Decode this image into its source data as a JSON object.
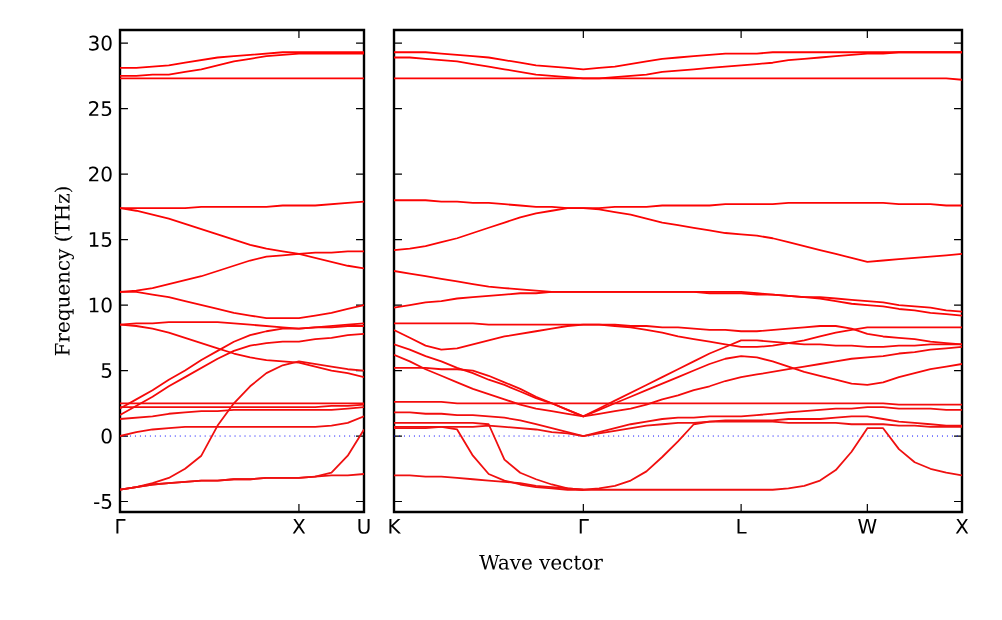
{
  "chart_data": [
    {
      "type": "line",
      "ylabel": "Frequency (THz)",
      "ylim": [
        -5.8,
        31
      ],
      "categories": [
        "Γ",
        null,
        null,
        null,
        null,
        null,
        null,
        null,
        null,
        null,
        null,
        "X",
        null,
        null,
        null,
        "U"
      ],
      "yticks": [
        -5,
        0,
        5,
        10,
        15,
        20,
        25,
        30
      ],
      "ref_lines": [
        {
          "axis": "y",
          "value": 0,
          "color": "#0000ff",
          "line_style": "dotted"
        }
      ],
      "series": [
        {
          "color": "#ff0000",
          "values": [
            28.1,
            28.1,
            28.2,
            28.3,
            28.5,
            28.7,
            28.9,
            29.0,
            29.1,
            29.2,
            29.3,
            29.3,
            29.3,
            29.3,
            29.3,
            29.3
          ]
        },
        {
          "color": "#fe0101",
          "values": [
            27.5,
            27.5,
            27.6,
            27.6,
            27.8,
            28.0,
            28.3,
            28.6,
            28.8,
            29.0,
            29.1,
            29.2,
            29.2,
            29.2,
            29.2,
            29.2
          ]
        },
        {
          "color": "#fd0202",
          "values": [
            27.3,
            27.3,
            27.3,
            27.3,
            27.3,
            27.3,
            27.3,
            27.3,
            27.3,
            27.3,
            27.3,
            27.3,
            27.3,
            27.3,
            27.3,
            27.3
          ]
        },
        {
          "color": "#fc0303",
          "values": [
            17.4,
            17.4,
            17.4,
            17.4,
            17.4,
            17.5,
            17.5,
            17.5,
            17.5,
            17.5,
            17.6,
            17.6,
            17.6,
            17.7,
            17.8,
            17.9
          ]
        },
        {
          "color": "#fb0404",
          "values": [
            17.4,
            17.2,
            16.9,
            16.6,
            16.2,
            15.8,
            15.4,
            15.0,
            14.6,
            14.3,
            14.1,
            13.9,
            13.6,
            13.3,
            13.0,
            12.8
          ]
        },
        {
          "color": "#fa0505",
          "values": [
            11.0,
            11.1,
            11.3,
            11.6,
            11.9,
            12.2,
            12.6,
            13.0,
            13.4,
            13.7,
            13.8,
            13.9,
            14.0,
            14.0,
            14.1,
            14.1
          ]
        },
        {
          "color": "#f90606",
          "values": [
            11.0,
            11.0,
            10.8,
            10.6,
            10.3,
            10.0,
            9.7,
            9.4,
            9.2,
            9.0,
            9.0,
            9.0,
            9.2,
            9.4,
            9.7,
            10.0
          ]
        },
        {
          "color": "#f80707",
          "values": [
            8.5,
            8.6,
            8.6,
            8.7,
            8.7,
            8.7,
            8.7,
            8.6,
            8.5,
            8.4,
            8.3,
            8.2,
            8.3,
            8.4,
            8.5,
            8.6
          ]
        },
        {
          "color": "#f70808",
          "values": [
            8.5,
            8.4,
            8.2,
            7.9,
            7.5,
            7.1,
            6.7,
            6.3,
            6.0,
            5.8,
            5.7,
            5.6,
            5.3,
            5.0,
            4.8,
            4.5
          ]
        },
        {
          "color": "#f60909",
          "values": [
            1.6,
            2.3,
            3.0,
            3.8,
            4.5,
            5.2,
            5.9,
            6.5,
            6.9,
            7.1,
            7.2,
            7.2,
            7.4,
            7.5,
            7.7,
            7.8
          ]
        },
        {
          "color": "#f50a0a",
          "values": [
            2.1,
            2.8,
            3.5,
            4.3,
            5.0,
            5.8,
            6.5,
            7.2,
            7.7,
            8.0,
            8.2,
            8.2,
            8.3,
            8.3,
            8.4,
            8.4
          ]
        },
        {
          "color": "#f40b0b",
          "values": [
            2.5,
            2.5,
            2.5,
            2.5,
            2.5,
            2.5,
            2.5,
            2.5,
            2.5,
            2.5,
            2.5,
            2.5,
            2.5,
            2.5,
            2.5,
            2.5
          ]
        },
        {
          "color": "#f30c0c",
          "values": [
            2.2,
            2.2,
            2.2,
            2.2,
            2.2,
            2.2,
            2.2,
            2.2,
            2.2,
            2.2,
            2.2,
            2.2,
            2.2,
            2.3,
            2.3,
            2.4
          ]
        },
        {
          "color": "#f20d0d",
          "values": [
            1.3,
            1.4,
            1.5,
            1.7,
            1.8,
            1.9,
            1.9,
            2.0,
            2.0,
            2.0,
            2.0,
            2.0,
            2.0,
            2.0,
            2.1,
            2.2
          ]
        },
        {
          "color": "#f10e0e",
          "values": [
            0.0,
            0.3,
            0.5,
            0.6,
            0.7,
            0.7,
            0.7,
            0.7,
            0.7,
            0.7,
            0.7,
            0.7,
            0.7,
            0.8,
            1.0,
            1.5
          ]
        },
        {
          "color": "#f00f0f",
          "values": [
            -4.1,
            -3.9,
            -3.6,
            -3.2,
            -2.5,
            -1.5,
            0.8,
            2.5,
            3.8,
            4.8,
            5.4,
            5.7,
            5.5,
            5.3,
            5.1,
            5.0
          ]
        },
        {
          "color": "#ef1010",
          "values": [
            -4.1,
            -3.9,
            -3.7,
            -3.6,
            -3.5,
            -3.4,
            -3.4,
            -3.3,
            -3.3,
            -3.2,
            -3.2,
            -3.2,
            -3.1,
            -3.0,
            -3.0,
            -2.9
          ]
        },
        {
          "color": "#ee1111",
          "values": [
            -4.1,
            -3.9,
            -3.7,
            -3.6,
            -3.5,
            -3.4,
            -3.4,
            -3.3,
            -3.3,
            -3.2,
            -3.2,
            -3.2,
            -3.1,
            -2.8,
            -1.5,
            0.5
          ]
        }
      ]
    },
    {
      "type": "line",
      "xlabel": "Wave vector",
      "ylim": [
        -5.8,
        31
      ],
      "tick_labels": "x",
      "categories": [
        "K",
        null,
        null,
        null,
        null,
        null,
        null,
        null,
        null,
        null,
        null,
        null,
        "Γ",
        null,
        null,
        null,
        null,
        null,
        null,
        null,
        null,
        null,
        "L",
        null,
        null,
        null,
        null,
        null,
        null,
        null,
        "W",
        null,
        null,
        null,
        null,
        null,
        "X"
      ],
      "yticks": [
        -5,
        0,
        5,
        10,
        15,
        20,
        25,
        30
      ],
      "ref_lines": [
        {
          "axis": "y",
          "value": 0,
          "color": "#0000ff",
          "line_style": "dotted"
        }
      ],
      "series": [
        {
          "color": "#ff0000",
          "values": [
            29.3,
            29.3,
            29.3,
            29.2,
            29.1,
            29.0,
            28.9,
            28.7,
            28.5,
            28.3,
            28.2,
            28.1,
            28.0,
            28.1,
            28.2,
            28.4,
            28.6,
            28.8,
            28.9,
            29.0,
            29.1,
            29.2,
            29.2,
            29.2,
            29.3,
            29.3,
            29.3,
            29.3,
            29.3,
            29.3,
            29.3,
            29.3,
            29.3,
            29.3,
            29.3,
            29.3,
            29.3
          ]
        },
        {
          "color": "#fe0101",
          "values": [
            28.9,
            28.9,
            28.8,
            28.7,
            28.6,
            28.4,
            28.2,
            28.0,
            27.8,
            27.6,
            27.5,
            27.4,
            27.3,
            27.3,
            27.4,
            27.5,
            27.6,
            27.8,
            27.9,
            28.0,
            28.1,
            28.2,
            28.3,
            28.4,
            28.5,
            28.7,
            28.8,
            28.9,
            29.0,
            29.1,
            29.2,
            29.2,
            29.3,
            29.3,
            29.3,
            29.3,
            29.3
          ]
        },
        {
          "color": "#fd0202",
          "values": [
            27.3,
            27.3,
            27.3,
            27.3,
            27.3,
            27.3,
            27.3,
            27.3,
            27.3,
            27.3,
            27.3,
            27.3,
            27.3,
            27.3,
            27.3,
            27.3,
            27.3,
            27.3,
            27.3,
            27.3,
            27.3,
            27.3,
            27.3,
            27.3,
            27.3,
            27.3,
            27.3,
            27.3,
            27.3,
            27.3,
            27.3,
            27.3,
            27.3,
            27.3,
            27.3,
            27.3,
            27.2
          ]
        },
        {
          "color": "#fc0303",
          "values": [
            18.0,
            18.0,
            18.0,
            17.9,
            17.9,
            17.8,
            17.8,
            17.7,
            17.6,
            17.5,
            17.5,
            17.4,
            17.4,
            17.4,
            17.5,
            17.5,
            17.5,
            17.6,
            17.6,
            17.6,
            17.6,
            17.7,
            17.7,
            17.7,
            17.7,
            17.8,
            17.8,
            17.8,
            17.8,
            17.8,
            17.8,
            17.8,
            17.7,
            17.7,
            17.7,
            17.6,
            17.6
          ]
        },
        {
          "color": "#fb0404",
          "values": [
            14.2,
            14.3,
            14.5,
            14.8,
            15.1,
            15.5,
            15.9,
            16.3,
            16.7,
            17.0,
            17.2,
            17.4,
            17.4,
            17.3,
            17.1,
            16.9,
            16.6,
            16.3,
            16.1,
            15.9,
            15.7,
            15.5,
            15.4,
            15.3,
            15.1,
            14.8,
            14.5,
            14.2,
            13.9,
            13.6,
            13.3,
            13.4,
            13.5,
            13.6,
            13.7,
            13.8,
            13.9
          ]
        },
        {
          "color": "#fa0505",
          "values": [
            12.6,
            12.4,
            12.2,
            12.0,
            11.8,
            11.6,
            11.4,
            11.3,
            11.2,
            11.1,
            11.0,
            11.0,
            11.0,
            11.0,
            11.0,
            11.0,
            11.0,
            11.0,
            11.0,
            11.0,
            11.0,
            11.0,
            11.0,
            10.9,
            10.8,
            10.7,
            10.6,
            10.5,
            10.3,
            10.1,
            10.0,
            9.9,
            9.7,
            9.6,
            9.4,
            9.3,
            9.2
          ]
        },
        {
          "color": "#f90606",
          "values": [
            9.8,
            10.0,
            10.2,
            10.3,
            10.5,
            10.6,
            10.7,
            10.8,
            10.9,
            10.9,
            11.0,
            11.0,
            11.0,
            11.0,
            11.0,
            11.0,
            11.0,
            11.0,
            11.0,
            11.0,
            10.9,
            10.9,
            10.9,
            10.8,
            10.8,
            10.7,
            10.6,
            10.6,
            10.5,
            10.4,
            10.3,
            10.2,
            10.0,
            9.9,
            9.8,
            9.6,
            9.5
          ]
        },
        {
          "color": "#f80707",
          "values": [
            8.6,
            8.6,
            8.6,
            8.6,
            8.6,
            8.6,
            8.5,
            8.5,
            8.5,
            8.5,
            8.5,
            8.5,
            8.5,
            8.5,
            8.4,
            8.3,
            8.1,
            7.9,
            7.6,
            7.4,
            7.2,
            7.0,
            6.8,
            6.8,
            6.9,
            7.1,
            7.3,
            7.6,
            7.9,
            8.1,
            8.3,
            8.3,
            8.3,
            8.3,
            8.3,
            8.3,
            8.3
          ]
        },
        {
          "color": "#f70808",
          "values": [
            8.1,
            7.5,
            6.9,
            6.6,
            6.7,
            7.0,
            7.3,
            7.6,
            7.8,
            8.0,
            8.2,
            8.4,
            8.5,
            8.5,
            8.5,
            8.4,
            8.4,
            8.3,
            8.3,
            8.2,
            8.1,
            8.1,
            8.0,
            8.0,
            8.1,
            8.2,
            8.3,
            8.4,
            8.4,
            8.2,
            7.8,
            7.6,
            7.5,
            7.4,
            7.2,
            7.1,
            7.0
          ]
        },
        {
          "color": "#f60909",
          "values": [
            7.0,
            6.6,
            6.1,
            5.7,
            5.2,
            4.8,
            4.3,
            3.9,
            3.4,
            2.9,
            2.5,
            2.0,
            1.5,
            2.0,
            2.5,
            3.0,
            3.5,
            4.0,
            4.5,
            5.0,
            5.5,
            5.9,
            6.1,
            6.0,
            5.7,
            5.3,
            4.9,
            4.6,
            4.3,
            4.0,
            3.9,
            4.1,
            4.5,
            4.8,
            5.1,
            5.3,
            5.5
          ]
        },
        {
          "color": "#f50a0a",
          "values": [
            5.2,
            5.2,
            5.2,
            5.1,
            5.1,
            5.0,
            4.6,
            4.1,
            3.6,
            3.0,
            2.5,
            2.0,
            1.5,
            2.1,
            2.7,
            3.3,
            3.9,
            4.5,
            5.1,
            5.7,
            6.3,
            6.8,
            7.3,
            7.3,
            7.2,
            7.1,
            7.0,
            7.0,
            6.9,
            6.9,
            6.8,
            6.8,
            6.9,
            6.9,
            7.0,
            7.0,
            7.0
          ]
        },
        {
          "color": "#f40b0b",
          "values": [
            6.2,
            5.7,
            5.1,
            4.6,
            4.1,
            3.6,
            3.2,
            2.8,
            2.4,
            2.1,
            1.9,
            1.7,
            1.5,
            1.7,
            1.9,
            2.1,
            2.4,
            2.8,
            3.1,
            3.5,
            3.8,
            4.2,
            4.5,
            4.7,
            4.9,
            5.1,
            5.3,
            5.5,
            5.7,
            5.9,
            6.0,
            6.1,
            6.3,
            6.4,
            6.6,
            6.7,
            6.8
          ]
        },
        {
          "color": "#f30c0c",
          "values": [
            2.6,
            2.6,
            2.6,
            2.6,
            2.5,
            2.5,
            2.5,
            2.5,
            2.5,
            2.5,
            2.5,
            2.5,
            2.5,
            2.5,
            2.5,
            2.5,
            2.5,
            2.5,
            2.5,
            2.5,
            2.5,
            2.5,
            2.5,
            2.5,
            2.5,
            2.5,
            2.5,
            2.5,
            2.5,
            2.5,
            2.5,
            2.5,
            2.4,
            2.4,
            2.4,
            2.4,
            2.4
          ]
        },
        {
          "color": "#f20d0d",
          "values": [
            1.8,
            1.8,
            1.7,
            1.7,
            1.6,
            1.6,
            1.5,
            1.4,
            1.2,
            0.9,
            0.6,
            0.3,
            0.0,
            0.3,
            0.6,
            0.9,
            1.1,
            1.3,
            1.4,
            1.4,
            1.5,
            1.5,
            1.5,
            1.6,
            1.7,
            1.8,
            1.9,
            2.0,
            2.1,
            2.1,
            2.2,
            2.2,
            2.1,
            2.1,
            2.1,
            2.0,
            2.0
          ]
        },
        {
          "color": "#f10e0e",
          "values": [
            0.7,
            0.7,
            0.7,
            0.7,
            0.5,
            -1.5,
            -2.9,
            -3.4,
            -3.7,
            -3.9,
            -4.0,
            -4.1,
            -4.1,
            -4.0,
            -3.8,
            -3.4,
            -2.7,
            -1.6,
            -0.4,
            0.9,
            1.1,
            1.2,
            1.2,
            1.2,
            1.2,
            1.3,
            1.3,
            1.3,
            1.4,
            1.5,
            1.5,
            1.3,
            1.1,
            1.0,
            0.9,
            0.8,
            0.8
          ]
        },
        {
          "color": "#f00f0f",
          "values": [
            1.0,
            1.0,
            1.0,
            1.0,
            1.0,
            1.0,
            0.9,
            -1.8,
            -2.8,
            -3.3,
            -3.7,
            -4.0,
            -4.1,
            null,
            null,
            null,
            null,
            null,
            null,
            null,
            null,
            null,
            null,
            null,
            null,
            null,
            null,
            null,
            null,
            null,
            null,
            null,
            null,
            null,
            null,
            null,
            null
          ]
        },
        {
          "color": "#ef1010",
          "values": [
            -3.0,
            -3.0,
            -3.1,
            -3.1,
            -3.2,
            -3.3,
            -3.4,
            -3.5,
            -3.6,
            -3.8,
            -3.9,
            -4.0,
            -4.1,
            -4.1,
            -4.1,
            -4.1,
            -4.1,
            -4.1,
            -4.1,
            -4.1,
            -4.1,
            -4.1,
            -4.1,
            -4.1,
            -4.1,
            -4.0,
            -3.8,
            -3.4,
            -2.6,
            -1.2,
            0.6,
            0.6,
            -1.0,
            -2.0,
            -2.5,
            -2.8,
            -3.0
          ]
        },
        {
          "color": "#ee1111",
          "values": [
            0.6,
            0.6,
            0.6,
            0.7,
            0.7,
            0.7,
            0.8,
            0.7,
            0.6,
            0.5,
            0.3,
            0.2,
            0.0,
            0.2,
            0.4,
            0.6,
            0.8,
            0.9,
            1.0,
            1.0,
            1.1,
            1.1,
            1.1,
            1.1,
            1.1,
            1.0,
            1.0,
            1.0,
            1.0,
            0.9,
            0.9,
            0.9,
            0.8,
            0.8,
            0.7,
            0.7,
            0.7
          ]
        }
      ]
    }
  ]
}
